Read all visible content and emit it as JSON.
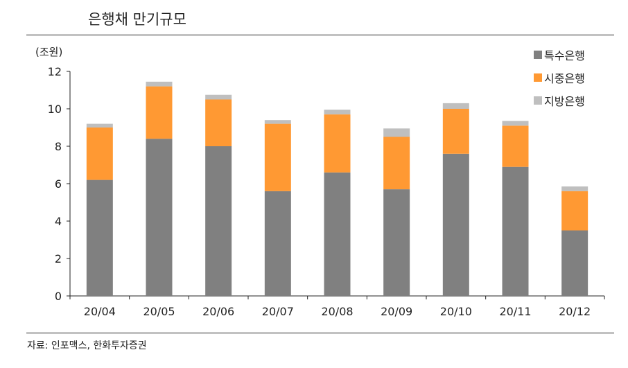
{
  "title": "은행채 만기규모",
  "unit_label": "(조원)",
  "source": "자료: 인포맥스, 한화투자증권",
  "legend": [
    {
      "label": "특수은행",
      "color": "#808080"
    },
    {
      "label": "시중은행",
      "color": "#FF9933"
    },
    {
      "label": "지방은행",
      "color": "#BFBFBF"
    }
  ],
  "chart_data": {
    "type": "bar",
    "stacked": true,
    "title": "은행채 만기규모",
    "xlabel": "",
    "ylabel": "(조원)",
    "ylim": [
      0,
      12
    ],
    "yticks": [
      0,
      2,
      4,
      6,
      8,
      10,
      12
    ],
    "grid": false,
    "legend_position": "top-right",
    "categories": [
      "20/04",
      "20/05",
      "20/06",
      "20/07",
      "20/08",
      "20/09",
      "20/10",
      "20/11",
      "20/12"
    ],
    "series": [
      {
        "name": "특수은행",
        "color": "#808080",
        "values": [
          6.2,
          8.4,
          8.0,
          5.6,
          6.6,
          5.7,
          7.6,
          6.9,
          3.5
        ]
      },
      {
        "name": "시중은행",
        "color": "#FF9933",
        "values": [
          2.8,
          2.8,
          2.5,
          3.6,
          3.1,
          2.8,
          2.4,
          2.2,
          2.1
        ]
      },
      {
        "name": "지방은행",
        "color": "#BFBFBF",
        "values": [
          0.2,
          0.25,
          0.25,
          0.2,
          0.25,
          0.45,
          0.3,
          0.25,
          0.25
        ]
      }
    ],
    "source": "자료: 인포맥스, 한화투자증권"
  }
}
